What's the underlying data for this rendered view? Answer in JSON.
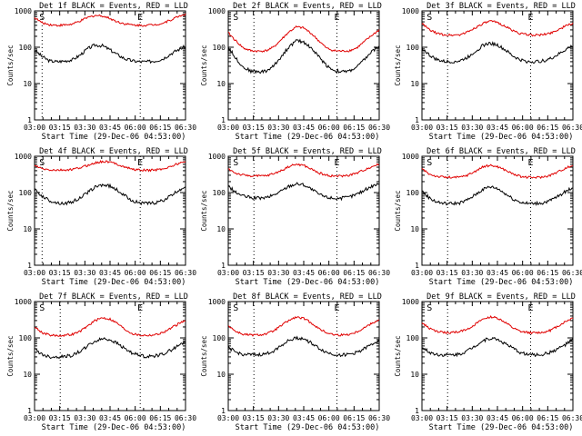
{
  "colors": {
    "events": "#000000",
    "lld": "#e00000",
    "axes": "#000000",
    "background": "#ffffff"
  },
  "chart_data": [
    {
      "type": "line",
      "title": "Det 1f BLACK = Events, RED = LLD",
      "xlabel": "Start Time (29-Dec-06 04:53:00)",
      "ylabel": "Counts/sec",
      "xticks": [
        "03:00",
        "03:15",
        "03:30",
        "03:45",
        "06:00",
        "06:15",
        "06:30"
      ],
      "yticks": [
        "1",
        "10",
        "100",
        "1000"
      ],
      "yscale": "log",
      "ylim": [
        1,
        1000
      ],
      "markers": [
        {
          "label": "S",
          "x": 0.05
        },
        {
          "label": "E",
          "x": 0.7
        }
      ],
      "eclipse_lines_x": [
        0.05,
        0.7
      ],
      "x": [
        0,
        0.05,
        0.1,
        0.15,
        0.2,
        0.25,
        0.3,
        0.35,
        0.4,
        0.45,
        0.5,
        0.55,
        0.6,
        0.65,
        0.7,
        0.75,
        0.8,
        0.85,
        0.9,
        0.95,
        1
      ],
      "series": [
        {
          "name": "Events",
          "values": [
            85,
            55,
            42,
            40,
            42,
            45,
            60,
            90,
            115,
            110,
            85,
            62,
            48,
            42,
            40,
            40,
            42,
            48,
            65,
            85,
            105
          ]
        },
        {
          "name": "LLD",
          "values": [
            650,
            470,
            420,
            400,
            410,
            430,
            520,
            650,
            750,
            730,
            620,
            500,
            440,
            410,
            400,
            405,
            420,
            460,
            560,
            700,
            820
          ]
        }
      ]
    },
    {
      "type": "line",
      "title": "Det 2f BLACK = Events, RED = LLD",
      "xlabel": "Start Time (29-Dec-06 04:53:00)",
      "ylabel": "Counts/sec",
      "xticks": [
        "03:00",
        "03:15",
        "03:30",
        "03:45",
        "06:00",
        "06:15",
        "06:30"
      ],
      "yticks": [
        "1",
        "10",
        "100",
        "1000"
      ],
      "yscale": "log",
      "ylim": [
        1,
        1000
      ],
      "markers": [
        {
          "label": "S",
          "x": 0.05
        },
        {
          "label": "E",
          "x": 0.72
        }
      ],
      "eclipse_lines_x": [
        0.17,
        0.72
      ],
      "x": [
        0,
        0.05,
        0.1,
        0.15,
        0.2,
        0.25,
        0.3,
        0.35,
        0.4,
        0.45,
        0.5,
        0.55,
        0.6,
        0.65,
        0.7,
        0.75,
        0.8,
        0.85,
        0.9,
        0.95,
        1
      ],
      "series": [
        {
          "name": "Events",
          "values": [
            100,
            50,
            28,
            22,
            21,
            22,
            30,
            55,
            100,
            150,
            140,
            95,
            55,
            32,
            23,
            21,
            22,
            28,
            45,
            75,
            110
          ]
        },
        {
          "name": "LLD",
          "values": [
            250,
            150,
            95,
            80,
            78,
            80,
            100,
            160,
            260,
            360,
            340,
            240,
            150,
            95,
            80,
            78,
            80,
            95,
            140,
            210,
            300
          ]
        }
      ]
    },
    {
      "type": "line",
      "title": "Det 3f BLACK = Events, RED = LLD",
      "xlabel": "Start Time (29-Dec-06 04:53:00)",
      "ylabel": "Counts/sec",
      "xticks": [
        "03:00",
        "03:15",
        "03:30",
        "03:45",
        "06:00",
        "06:15",
        "06:30"
      ],
      "yticks": [
        "1",
        "10",
        "100",
        "1000"
      ],
      "yscale": "log",
      "ylim": [
        1,
        1000
      ],
      "markers": [
        {
          "label": "S",
          "x": 0.05
        },
        {
          "label": "E",
          "x": 0.72
        }
      ],
      "eclipse_lines_x": [
        0.17,
        0.72
      ],
      "x": [
        0,
        0.05,
        0.1,
        0.15,
        0.2,
        0.25,
        0.3,
        0.35,
        0.4,
        0.45,
        0.5,
        0.55,
        0.6,
        0.65,
        0.7,
        0.75,
        0.8,
        0.85,
        0.9,
        0.95,
        1
      ],
      "series": [
        {
          "name": "Events",
          "values": [
            95,
            60,
            45,
            40,
            40,
            42,
            52,
            75,
            110,
            130,
            115,
            85,
            58,
            45,
            40,
            40,
            42,
            48,
            62,
            85,
            110
          ]
        },
        {
          "name": "LLD",
          "values": [
            450,
            300,
            240,
            220,
            215,
            220,
            260,
            340,
            440,
            520,
            480,
            380,
            290,
            240,
            220,
            215,
            220,
            245,
            300,
            380,
            460
          ]
        }
      ]
    },
    {
      "type": "line",
      "title": "Det 4f BLACK = Events, RED = LLD",
      "xlabel": "Start Time (29-Dec-06 04:53:00)",
      "ylabel": "Counts/sec",
      "xticks": [
        "03:00",
        "03:15",
        "03:30",
        "03:45",
        "06:00",
        "06:15",
        "06:30"
      ],
      "yticks": [
        "1",
        "10",
        "100",
        "1000"
      ],
      "yscale": "log",
      "ylim": [
        1,
        1000
      ],
      "markers": [
        {
          "label": "S",
          "x": 0.05
        },
        {
          "label": "E",
          "x": 0.7
        }
      ],
      "eclipse_lines_x": [
        0.05,
        0.7
      ],
      "x": [
        0,
        0.05,
        0.1,
        0.15,
        0.2,
        0.25,
        0.3,
        0.35,
        0.4,
        0.45,
        0.5,
        0.55,
        0.6,
        0.65,
        0.7,
        0.75,
        0.8,
        0.85,
        0.9,
        0.95,
        1
      ],
      "series": [
        {
          "name": "Events",
          "values": [
            120,
            80,
            60,
            52,
            50,
            55,
            70,
            100,
            140,
            165,
            150,
            115,
            80,
            60,
            52,
            50,
            52,
            60,
            80,
            110,
            150
          ]
        },
        {
          "name": "LLD",
          "values": [
            550,
            450,
            420,
            410,
            415,
            430,
            480,
            560,
            650,
            720,
            690,
            600,
            500,
            440,
            415,
            410,
            420,
            450,
            520,
            620,
            720
          ]
        }
      ]
    },
    {
      "type": "line",
      "title": "Det 5f BLACK = Events, RED = LLD",
      "xlabel": "Start Time (29-Dec-06 04:53:00)",
      "ylabel": "Counts/sec",
      "xticks": [
        "03:00",
        "03:15",
        "03:30",
        "03:45",
        "06:00",
        "06:15",
        "06:30"
      ],
      "yticks": [
        "1",
        "10",
        "100",
        "1000"
      ],
      "yscale": "log",
      "ylim": [
        1,
        1000
      ],
      "markers": [
        {
          "label": "S",
          "x": 0.05
        },
        {
          "label": "E",
          "x": 0.72
        }
      ],
      "eclipse_lines_x": [
        0.17,
        0.72
      ],
      "x": [
        0,
        0.05,
        0.1,
        0.15,
        0.2,
        0.25,
        0.3,
        0.35,
        0.4,
        0.45,
        0.5,
        0.55,
        0.6,
        0.65,
        0.7,
        0.75,
        0.8,
        0.85,
        0.9,
        0.95,
        1
      ],
      "series": [
        {
          "name": "Events",
          "values": [
            150,
            100,
            80,
            72,
            70,
            72,
            85,
            110,
            150,
            175,
            165,
            125,
            90,
            75,
            70,
            70,
            75,
            90,
            115,
            150,
            180
          ]
        },
        {
          "name": "LLD",
          "values": [
            450,
            340,
            300,
            290,
            285,
            290,
            330,
            400,
            520,
            600,
            560,
            440,
            350,
            300,
            285,
            285,
            300,
            340,
            420,
            520,
            600
          ]
        }
      ]
    },
    {
      "type": "line",
      "title": "Det 6f BLACK = Events, RED = LLD",
      "xlabel": "Start Time (29-Dec-06 04:53:00)",
      "ylabel": "Counts/sec",
      "xticks": [
        "03:00",
        "03:15",
        "03:30",
        "03:45",
        "06:00",
        "06:15",
        "06:30"
      ],
      "yticks": [
        "1",
        "10",
        "100",
        "1000"
      ],
      "yscale": "log",
      "ylim": [
        1,
        1000
      ],
      "markers": [
        {
          "label": "S",
          "x": 0.05
        },
        {
          "label": "E",
          "x": 0.72
        }
      ],
      "eclipse_lines_x": [
        0.17,
        0.72
      ],
      "x": [
        0,
        0.05,
        0.1,
        0.15,
        0.2,
        0.25,
        0.3,
        0.35,
        0.4,
        0.45,
        0.5,
        0.55,
        0.6,
        0.65,
        0.7,
        0.75,
        0.8,
        0.85,
        0.9,
        0.95,
        1
      ],
      "series": [
        {
          "name": "Events",
          "values": [
            110,
            70,
            55,
            50,
            50,
            52,
            62,
            85,
            120,
            145,
            130,
            95,
            68,
            55,
            50,
            50,
            52,
            60,
            78,
            105,
            140
          ]
        },
        {
          "name": "LLD",
          "values": [
            450,
            320,
            280,
            265,
            260,
            265,
            300,
            380,
            500,
            560,
            520,
            420,
            330,
            280,
            262,
            260,
            268,
            300,
            370,
            470,
            560
          ]
        }
      ]
    },
    {
      "type": "line",
      "title": "Det 7f BLACK = Events, RED = LLD",
      "xlabel": "Start Time (29-Dec-06 04:53:00)",
      "ylabel": "Counts/sec",
      "xticks": [
        "03:00",
        "03:15",
        "03:30",
        "03:45",
        "06:00",
        "06:15",
        "06:30"
      ],
      "yticks": [
        "1",
        "10",
        "100",
        "1000"
      ],
      "yscale": "log",
      "ylim": [
        1,
        1000
      ],
      "markers": [
        {
          "label": "S",
          "x": 0.05
        },
        {
          "label": "E",
          "x": 0.7
        }
      ],
      "eclipse_lines_x": [
        0.17,
        0.7
      ],
      "x": [
        0,
        0.05,
        0.1,
        0.15,
        0.2,
        0.25,
        0.3,
        0.35,
        0.4,
        0.45,
        0.5,
        0.55,
        0.6,
        0.65,
        0.7,
        0.75,
        0.8,
        0.85,
        0.9,
        0.95,
        1
      ],
      "series": [
        {
          "name": "Events",
          "values": [
            50,
            35,
            30,
            30,
            31,
            33,
            42,
            60,
            80,
            95,
            90,
            70,
            50,
            38,
            32,
            31,
            32,
            36,
            45,
            60,
            80
          ]
        },
        {
          "name": "LLD",
          "values": [
            200,
            140,
            120,
            115,
            118,
            125,
            150,
            210,
            300,
            360,
            330,
            250,
            170,
            130,
            118,
            118,
            122,
            140,
            180,
            240,
            300
          ]
        }
      ]
    },
    {
      "type": "line",
      "title": "Det 8f BLACK = Events, RED = LLD",
      "xlabel": "Start Time (29-Dec-06 04:53:00)",
      "ylabel": "Counts/sec",
      "xticks": [
        "03:00",
        "03:15",
        "03:30",
        "03:45",
        "06:00",
        "06:15",
        "06:30"
      ],
      "yticks": [
        "1",
        "10",
        "100",
        "1000"
      ],
      "yscale": "log",
      "ylim": [
        1,
        1000
      ],
      "markers": [
        {
          "label": "S",
          "x": 0.05
        },
        {
          "label": "E",
          "x": 0.72
        }
      ],
      "eclipse_lines_x": [
        0.17,
        0.72
      ],
      "x": [
        0,
        0.05,
        0.1,
        0.15,
        0.2,
        0.25,
        0.3,
        0.35,
        0.4,
        0.45,
        0.5,
        0.55,
        0.6,
        0.65,
        0.7,
        0.75,
        0.8,
        0.85,
        0.9,
        0.95,
        1
      ],
      "series": [
        {
          "name": "Events",
          "values": [
            55,
            40,
            35,
            34,
            34,
            36,
            44,
            62,
            85,
            100,
            95,
            72,
            52,
            40,
            35,
            34,
            35,
            40,
            50,
            65,
            90
          ]
        },
        {
          "name": "LLD",
          "values": [
            220,
            150,
            125,
            120,
            120,
            128,
            155,
            215,
            300,
            370,
            340,
            260,
            180,
            140,
            122,
            120,
            125,
            145,
            190,
            250,
            320
          ]
        }
      ]
    },
    {
      "type": "line",
      "title": "Det 9f BLACK = Events, RED = LLD",
      "xlabel": "Start Time (29-Dec-06 04:53:00)",
      "ylabel": "Counts/sec",
      "xticks": [
        "03:00",
        "03:15",
        "03:30",
        "03:45",
        "06:00",
        "06:15",
        "06:30"
      ],
      "yticks": [
        "1",
        "10",
        "100",
        "1000"
      ],
      "yscale": "log",
      "ylim": [
        1,
        1000
      ],
      "markers": [
        {
          "label": "S",
          "x": 0.05
        },
        {
          "label": "E",
          "x": 0.72
        }
      ],
      "eclipse_lines_x": [
        0.17,
        0.72
      ],
      "x": [
        0,
        0.05,
        0.1,
        0.15,
        0.2,
        0.25,
        0.3,
        0.35,
        0.4,
        0.45,
        0.5,
        0.55,
        0.6,
        0.65,
        0.7,
        0.75,
        0.8,
        0.85,
        0.9,
        0.95,
        1
      ],
      "series": [
        {
          "name": "Events",
          "values": [
            55,
            40,
            35,
            34,
            34,
            36,
            44,
            60,
            82,
            98,
            92,
            70,
            52,
            40,
            35,
            34,
            35,
            40,
            50,
            65,
            90
          ]
        },
        {
          "name": "LLD",
          "values": [
            260,
            180,
            150,
            140,
            140,
            148,
            175,
            230,
            320,
            380,
            350,
            270,
            190,
            150,
            140,
            138,
            142,
            160,
            210,
            280,
            360
          ]
        }
      ]
    }
  ]
}
